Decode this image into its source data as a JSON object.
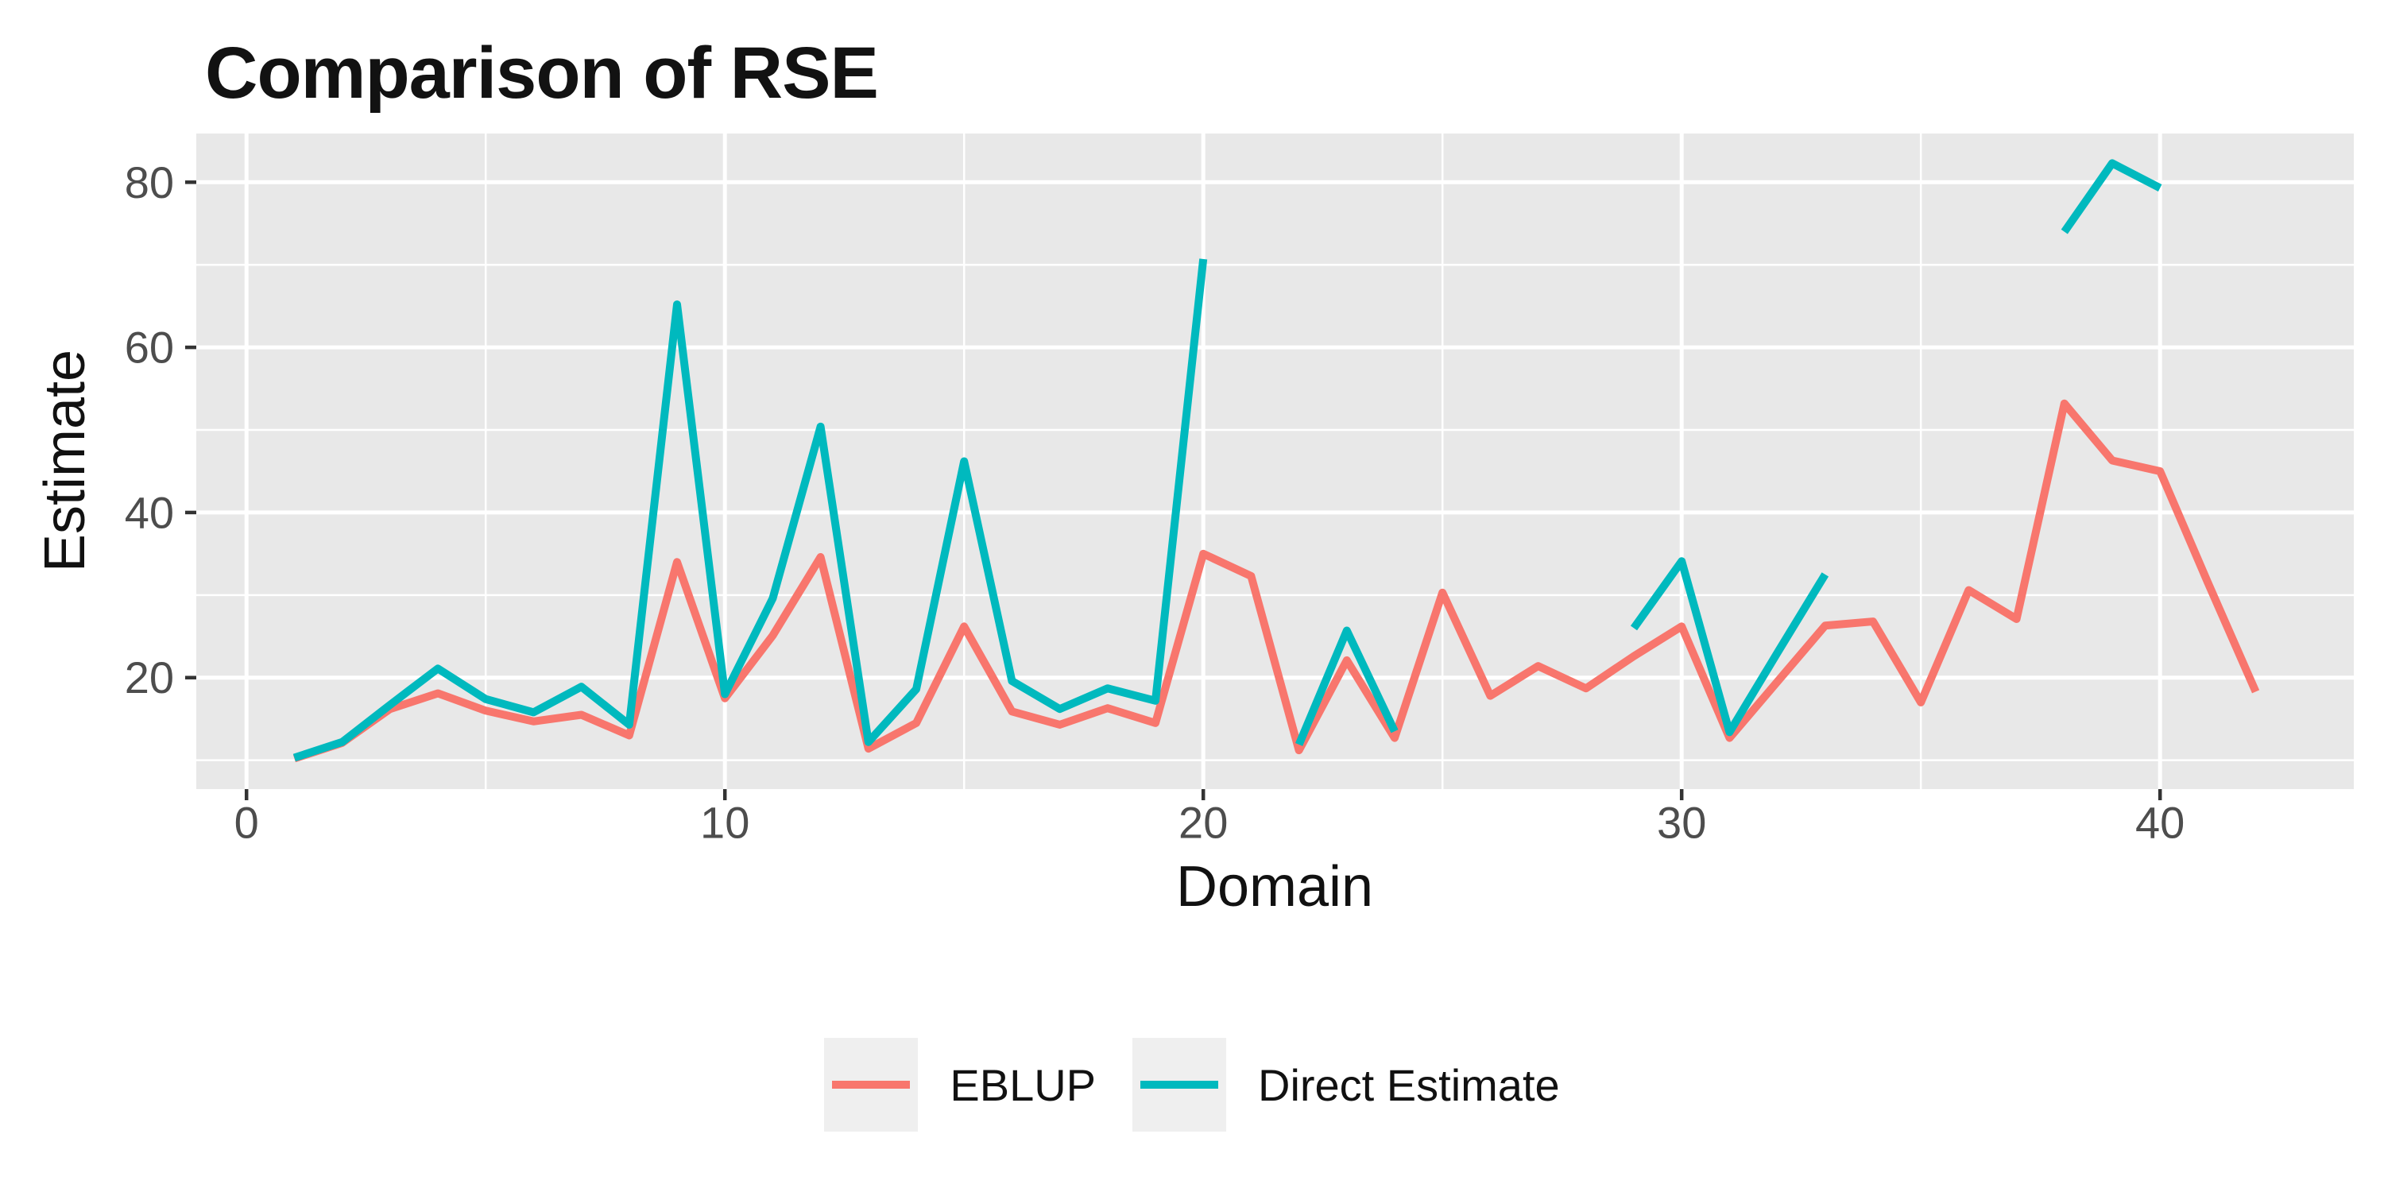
{
  "chart_data": {
    "type": "line",
    "title": "Comparison of RSE",
    "xlabel": "Domain",
    "ylabel": "Estimate",
    "x": [
      1,
      2,
      3,
      4,
      5,
      6,
      7,
      8,
      9,
      10,
      11,
      12,
      13,
      14,
      15,
      16,
      17,
      18,
      19,
      20,
      21,
      22,
      23,
      24,
      25,
      26,
      27,
      28,
      29,
      30,
      31,
      32,
      33,
      34,
      35,
      36,
      37,
      38,
      39,
      40,
      41,
      42
    ],
    "series": [
      {
        "name": "EBLUP",
        "color": "#F8766D",
        "values": [
          10.2,
          12.1,
          16.2,
          18.1,
          16.0,
          14.7,
          15.5,
          13.0,
          34.0,
          17.5,
          25.1,
          34.6,
          11.4,
          14.5,
          26.2,
          15.9,
          14.3,
          16.3,
          14.5,
          35.0,
          32.3,
          11.2,
          22.1,
          12.7,
          30.3,
          17.8,
          21.4,
          18.7,
          22.6,
          26.2,
          12.7,
          19.5,
          26.3,
          26.8,
          17.0,
          30.6,
          27.1,
          53.2,
          46.3,
          45.0,
          31.5,
          18.3
        ]
      },
      {
        "name": "Direct Estimate",
        "color": "#00B9BE",
        "values": [
          10.3,
          12.2,
          16.7,
          21.1,
          17.4,
          15.8,
          18.9,
          14.3,
          65.2,
          18.0,
          29.6,
          50.4,
          12.2,
          18.6,
          46.2,
          19.6,
          16.2,
          18.7,
          17.2,
          70.7,
          null,
          11.9,
          25.7,
          13.5,
          null,
          null,
          null,
          null,
          26.0,
          34.1,
          13.4,
          23.0,
          32.5,
          null,
          null,
          null,
          null,
          74.0,
          82.3,
          79.3,
          null,
          null
        ]
      }
    ],
    "xlim": [
      -1.05,
      44.05
    ],
    "ylim": [
      6.5,
      85.9
    ],
    "x_major_ticks": [
      0,
      10,
      20,
      30,
      40
    ],
    "x_minor_ticks": [
      5,
      15,
      25,
      35
    ],
    "y_major_ticks": [
      20,
      40,
      60,
      80
    ],
    "y_minor_ticks": [
      10,
      30,
      50,
      70
    ],
    "grid": "on",
    "legend_position": "bottom-center"
  },
  "legend": {
    "items": [
      {
        "label": "EBLUP",
        "color": "#F8766D"
      },
      {
        "label": "Direct Estimate",
        "color": "#00B9BE"
      }
    ]
  },
  "style": {
    "panel_background": "#E8E8E8",
    "grid_color": "#FFFFFF",
    "tick_mark_color": "#333333",
    "tick_label_color": "#4D4D4D",
    "text_color": "#111111",
    "legend_key_background": "#EFEFEF"
  }
}
